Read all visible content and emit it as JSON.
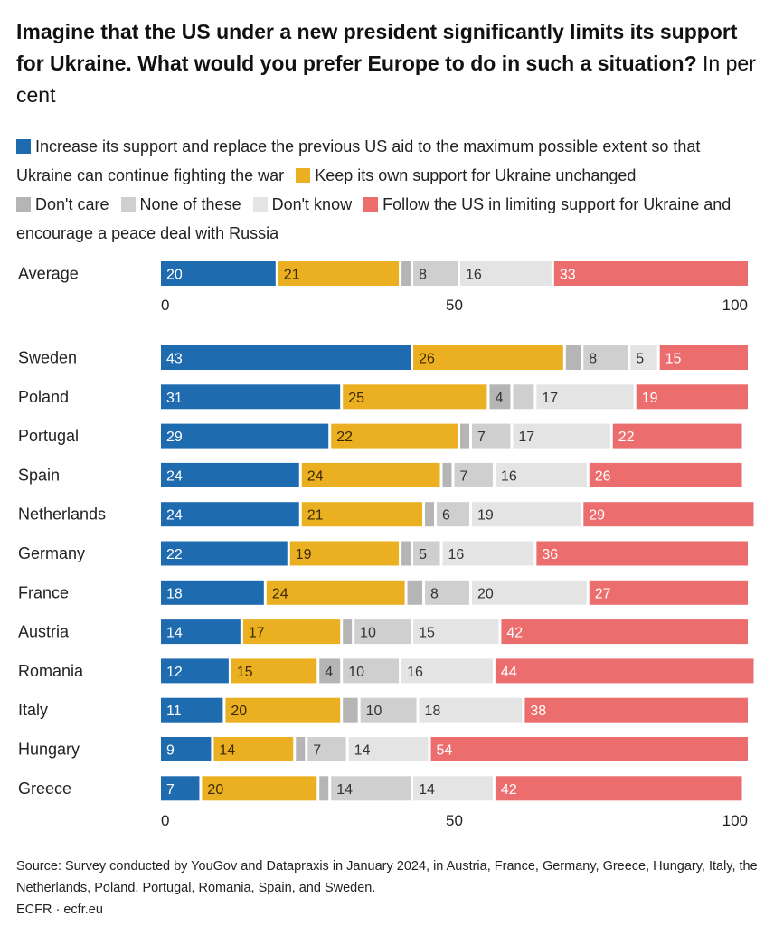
{
  "title": {
    "main": "Imagine that the US under a new president significantly limits its support for Ukraine. What would you prefer Europe to do in such a situation?",
    "unit": "In per cent"
  },
  "source": {
    "line1": "Source: Survey conducted by YouGov and Datapraxis in January 2024, in Austria, France, Germany, Greece, Hungary, Italy, the Netherlands, Poland, Portugal, Romania, Spain, and Sweden.",
    "line2": "ECFR · ecfr.eu"
  },
  "chart_data": {
    "type": "bar",
    "orientation": "horizontal-stacked",
    "xlim": [
      0,
      100
    ],
    "xticks": [
      "0",
      "50",
      "100"
    ],
    "legend_placement": "top",
    "series": [
      {
        "name": "Increase its support and replace the previous US aid to the maximum possible extent so that Ukraine can continue fighting the war",
        "color": "#1e6bb0",
        "label_color": "#ffffff"
      },
      {
        "name": "Keep its own support for Ukraine unchanged",
        "color": "#ebb021",
        "label_color": "#3a2a00"
      },
      {
        "name": "Don't care",
        "color": "#b5b5b5",
        "label_color": "#333333"
      },
      {
        "name": "None of these",
        "color": "#cfcfcf",
        "label_color": "#333333"
      },
      {
        "name": "Don't know",
        "color": "#e4e4e4",
        "label_color": "#333333"
      },
      {
        "name": "Follow the US in limiting support for Ukraine and encourage a peace deal with Russia",
        "color": "#ec6d6d",
        "label_color": "#ffffff"
      }
    ],
    "average": {
      "category": "Average",
      "values": [
        20,
        21,
        2,
        8,
        16,
        33
      ],
      "labels": [
        "20",
        "21",
        "",
        "8",
        "16",
        "33"
      ]
    },
    "categories": [
      "Sweden",
      "Poland",
      "Portugal",
      "Spain",
      "Netherlands",
      "Germany",
      "France",
      "Austria",
      "Romania",
      "Italy",
      "Hungary",
      "Greece"
    ],
    "values": [
      [
        43,
        26,
        3,
        8,
        5,
        15
      ],
      [
        31,
        25,
        4,
        4,
        17,
        19
      ],
      [
        29,
        22,
        2,
        7,
        17,
        22
      ],
      [
        24,
        24,
        2,
        7,
        16,
        26
      ],
      [
        24,
        21,
        2,
        6,
        19,
        29
      ],
      [
        22,
        19,
        2,
        5,
        16,
        36
      ],
      [
        18,
        24,
        3,
        8,
        20,
        27
      ],
      [
        14,
        17,
        2,
        10,
        15,
        42
      ],
      [
        12,
        15,
        4,
        10,
        16,
        44
      ],
      [
        11,
        20,
        3,
        10,
        18,
        38
      ],
      [
        9,
        14,
        2,
        7,
        14,
        54
      ],
      [
        7,
        20,
        2,
        14,
        14,
        42
      ]
    ],
    "labels": [
      [
        "43",
        "26",
        "",
        "8",
        "5",
        "15"
      ],
      [
        "31",
        "25",
        "4",
        "",
        "17",
        "19"
      ],
      [
        "29",
        "22",
        "",
        "7",
        "17",
        "22"
      ],
      [
        "24",
        "24",
        "",
        "7",
        "16",
        "26"
      ],
      [
        "24",
        "21",
        "",
        "6",
        "19",
        "29"
      ],
      [
        "22",
        "19",
        "",
        "5",
        "16",
        "36"
      ],
      [
        "18",
        "24",
        "",
        "8",
        "20",
        "27"
      ],
      [
        "14",
        "17",
        "",
        "10",
        "15",
        "42"
      ],
      [
        "12",
        "15",
        "4",
        "10",
        "16",
        "44"
      ],
      [
        "11",
        "20",
        "",
        "10",
        "18",
        "38"
      ],
      [
        "9",
        "14",
        "",
        "7",
        "14",
        "54"
      ],
      [
        "7",
        "20",
        "",
        "14",
        "14",
        "42"
      ]
    ]
  }
}
